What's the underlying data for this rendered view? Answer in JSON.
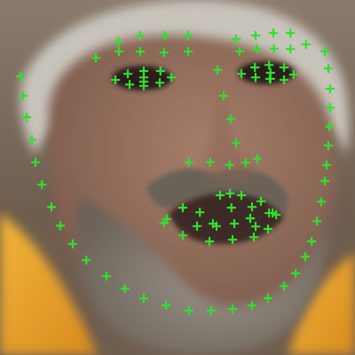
{
  "photo": {
    "subject": "face-photo",
    "palette": {
      "background_top": "#8a7a6c",
      "background_mid": "#6f5d4e",
      "skin": "#a77f6b",
      "skin_shadow": "#7b5a4b",
      "hair_gray": "#c8c4bc",
      "beard": "#9a9288",
      "beard_dark": "#6b6259",
      "robe_orange": "#d88a1e",
      "robe_yellow": "#f0b43a",
      "eye_dark": "#2b1f1b",
      "mouth_dark": "#3c2b26"
    }
  },
  "landmarks": {
    "marker_color": "#2fe02f",
    "marker_shape": "plus",
    "unit": "fraction-of-image",
    "points": [
      [
        0.058,
        0.215
      ],
      [
        0.065,
        0.27
      ],
      [
        0.075,
        0.33
      ],
      [
        0.09,
        0.393
      ],
      [
        0.1,
        0.457
      ],
      [
        0.118,
        0.52
      ],
      [
        0.145,
        0.583
      ],
      [
        0.17,
        0.636
      ],
      [
        0.205,
        0.687
      ],
      [
        0.243,
        0.733
      ],
      [
        0.3,
        0.778
      ],
      [
        0.352,
        0.813
      ],
      [
        0.405,
        0.84
      ],
      [
        0.468,
        0.86
      ],
      [
        0.532,
        0.875
      ],
      [
        0.595,
        0.875
      ],
      [
        0.655,
        0.87
      ],
      [
        0.71,
        0.86
      ],
      [
        0.755,
        0.84
      ],
      [
        0.8,
        0.806
      ],
      [
        0.833,
        0.77
      ],
      [
        0.86,
        0.723
      ],
      [
        0.878,
        0.68
      ],
      [
        0.893,
        0.623
      ],
      [
        0.905,
        0.568
      ],
      [
        0.915,
        0.51
      ],
      [
        0.92,
        0.465
      ],
      [
        0.925,
        0.41
      ],
      [
        0.928,
        0.357
      ],
      [
        0.93,
        0.303
      ],
      [
        0.93,
        0.25
      ],
      [
        0.925,
        0.193
      ],
      [
        0.915,
        0.145
      ],
      [
        0.27,
        0.163
      ],
      [
        0.333,
        0.118
      ],
      [
        0.395,
        0.1
      ],
      [
        0.465,
        0.1
      ],
      [
        0.53,
        0.1
      ],
      [
        0.335,
        0.145
      ],
      [
        0.395,
        0.145
      ],
      [
        0.462,
        0.148
      ],
      [
        0.53,
        0.145
      ],
      [
        0.665,
        0.11
      ],
      [
        0.72,
        0.1
      ],
      [
        0.77,
        0.093
      ],
      [
        0.818,
        0.093
      ],
      [
        0.862,
        0.125
      ],
      [
        0.675,
        0.145
      ],
      [
        0.723,
        0.137
      ],
      [
        0.772,
        0.137
      ],
      [
        0.818,
        0.138
      ],
      [
        0.613,
        0.197
      ],
      [
        0.63,
        0.27
      ],
      [
        0.65,
        0.335
      ],
      [
        0.665,
        0.403
      ],
      [
        0.532,
        0.457
      ],
      [
        0.592,
        0.457
      ],
      [
        0.647,
        0.465
      ],
      [
        0.692,
        0.458
      ],
      [
        0.725,
        0.447
      ],
      [
        0.325,
        0.225
      ],
      [
        0.36,
        0.208
      ],
      [
        0.405,
        0.2
      ],
      [
        0.452,
        0.2
      ],
      [
        0.483,
        0.218
      ],
      [
        0.45,
        0.233
      ],
      [
        0.405,
        0.242
      ],
      [
        0.365,
        0.238
      ],
      [
        0.405,
        0.218
      ],
      [
        0.405,
        0.23
      ],
      [
        0.68,
        0.208
      ],
      [
        0.718,
        0.19
      ],
      [
        0.758,
        0.183
      ],
      [
        0.8,
        0.19
      ],
      [
        0.827,
        0.21
      ],
      [
        0.8,
        0.225
      ],
      [
        0.76,
        0.222
      ],
      [
        0.72,
        0.218
      ],
      [
        0.762,
        0.205
      ],
      [
        0.762,
        0.222
      ],
      [
        0.462,
        0.628
      ],
      [
        0.515,
        0.585
      ],
      [
        0.563,
        0.598
      ],
      [
        0.62,
        0.55
      ],
      [
        0.648,
        0.545
      ],
      [
        0.68,
        0.55
      ],
      [
        0.71,
        0.583
      ],
      [
        0.735,
        0.567
      ],
      [
        0.768,
        0.6
      ],
      [
        0.778,
        0.605
      ],
      [
        0.755,
        0.645
      ],
      [
        0.715,
        0.668
      ],
      [
        0.655,
        0.675
      ],
      [
        0.59,
        0.68
      ],
      [
        0.515,
        0.663
      ],
      [
        0.47,
        0.617
      ],
      [
        0.555,
        0.637
      ],
      [
        0.61,
        0.637
      ],
      [
        0.652,
        0.585
      ],
      [
        0.705,
        0.615
      ],
      [
        0.758,
        0.6
      ],
      [
        0.72,
        0.638
      ],
      [
        0.66,
        0.63
      ],
      [
        0.6,
        0.63
      ]
    ]
  }
}
